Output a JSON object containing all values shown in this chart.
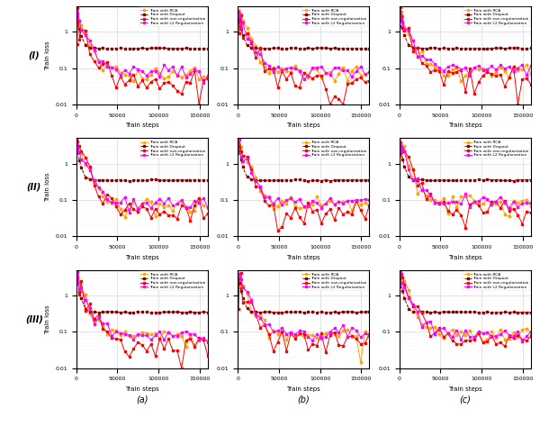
{
  "row_labels": [
    "(I)",
    "(II)",
    "(III)"
  ],
  "col_labels": [
    "(a)",
    "(b)",
    "(c)"
  ],
  "legend_entries": [
    {
      "label": "Train with RCA",
      "color": "#FFA500",
      "marker": "o",
      "linestyle": "-"
    },
    {
      "label": "Train with Dropout",
      "color": "#8B0000",
      "marker": "s",
      "linestyle": "--"
    },
    {
      "label": "Train with non-regularization",
      "color": "#FF0000",
      "marker": "s",
      "linestyle": "-"
    },
    {
      "label": "Train with L2 Regularization",
      "color": "#FF00FF",
      "marker": "s",
      "linestyle": "-"
    }
  ],
  "xlabel": "Train steps",
  "ylabel": "Train loss",
  "xlim": [
    0,
    160000
  ],
  "ylim_log": [
    0.01,
    5
  ],
  "xticks": [
    0,
    50000,
    100000,
    150000
  ],
  "ytick_vals": [
    0.01,
    0.1,
    1
  ],
  "ytick_labels": [
    "0.01",
    "0.1",
    "1"
  ],
  "grid": true,
  "figsize": [
    6.0,
    4.74
  ],
  "dpi": 100,
  "n_points": 35,
  "dropout_plateau": 0.35,
  "dropout_noise": 0.02,
  "rca_end": 0.07,
  "rca_noise": 0.25,
  "nr_end": 0.045,
  "nr_noise": 0.4,
  "l2_end": 0.08,
  "l2_noise": 0.22
}
